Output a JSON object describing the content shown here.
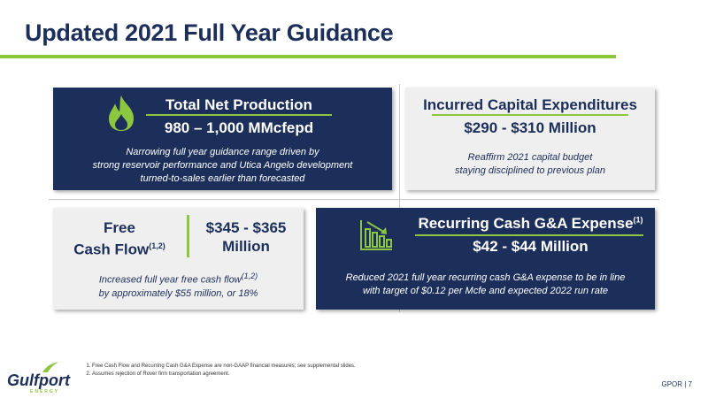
{
  "header": {
    "title": "Updated 2021 Full Year Guidance"
  },
  "cards": [
    {
      "heading": "Total Net Production",
      "value": "980 – 1,000 MMcfepd",
      "description": [
        "Narrowing full year guidance range driven by",
        "strong reservoir performance and Utica Angelo development",
        "turned-to-sales earlier than forecasted"
      ]
    },
    {
      "heading": "Incurred Capital Expenditures",
      "value": "$290 - $310 Million",
      "description": [
        "Reaffirm 2021 capital budget",
        "staying disciplined to previous plan"
      ]
    },
    {
      "heading": [
        "Free",
        "Cash Flow"
      ],
      "heading_note": "(1,2)",
      "value": [
        "$345 - $365",
        "Million"
      ],
      "description": [
        "Increased full year free cash flow",
        "by approximately $55 million, or 18%"
      ],
      "description_note": "(1,2)"
    },
    {
      "heading": "Recurring Cash G&A Expense",
      "heading_note": "(1)",
      "value": "$42 - $44 Million",
      "description": [
        "Reduced 2021 full year recurring cash G&A expense to be in line",
        "with target of $0.12 per Mcfe and expected 2022 run rate"
      ]
    }
  ],
  "footnotes": [
    "Free Cash Flow and Recurring Cash G&A Expense are non-GAAP financial measures; see supplemental slides.",
    "Assumes rejection of Rover firm transportation agreement."
  ],
  "footer": {
    "logo": "Gulfport",
    "logo_sub": "ENERGY",
    "page": "GPOR | 7"
  }
}
